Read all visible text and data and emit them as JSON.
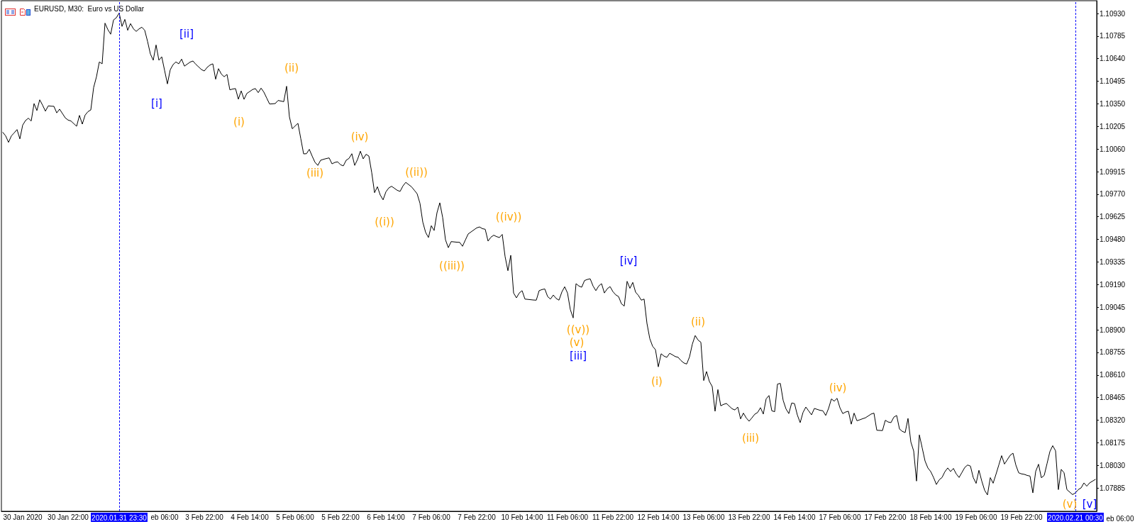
{
  "chart_data": {
    "type": "line",
    "title": "EURUSD, M30:  Euro vs US Dollar",
    "color": "#000000",
    "marker": "none",
    "line_style": "solid",
    "categories": [
      null,
      null,
      null,
      null,
      null,
      null,
      null,
      "30 Jan 2020",
      null,
      null,
      null,
      null,
      null,
      null,
      null,
      null,
      null,
      null,
      null,
      null,
      null,
      null,
      null,
      "30 Jan 22:00",
      null,
      null,
      null,
      null,
      null,
      null,
      null,
      null,
      null,
      null,
      null,
      null,
      null,
      null,
      null,
      null,
      null,
      "2020.01.31 23:30",
      null,
      null,
      null,
      null,
      null,
      null,
      null,
      null,
      null,
      null,
      null,
      null,
      null,
      null,
      null,
      "eb 06:00",
      null,
      null,
      null,
      null,
      null,
      null,
      null,
      null,
      null,
      null,
      null,
      null,
      null,
      "3 Feb 22:00",
      null,
      null,
      null,
      null,
      null,
      null,
      null,
      null,
      null,
      null,
      null,
      null,
      null,
      null,
      null,
      "4 Feb 14:00",
      null,
      null,
      null,
      null,
      null,
      null,
      null,
      null,
      null,
      null,
      null,
      null,
      null,
      null,
      null,
      "5 Feb 06:00",
      null,
      null,
      null,
      null,
      null,
      null,
      null,
      null,
      null,
      null,
      null,
      null,
      null,
      null,
      null,
      "5 Feb 22:00",
      null,
      null,
      null,
      null,
      null,
      null,
      null,
      null,
      null,
      null,
      null,
      null,
      null,
      null,
      null,
      "6 Feb 14:00",
      null,
      null,
      null,
      null,
      null,
      null,
      null,
      null,
      null,
      null,
      null,
      null,
      null,
      null,
      null,
      "7 Feb 06:00",
      null,
      null,
      null,
      null,
      null,
      null,
      null,
      null,
      null,
      null,
      null,
      null,
      null,
      null,
      null,
      "7 Feb 22:00",
      null,
      null,
      null,
      null,
      null,
      null,
      null,
      null,
      null,
      null,
      null,
      null,
      null,
      null,
      null,
      "10 Feb 14:00",
      null,
      null,
      null,
      null,
      null,
      null,
      null,
      null,
      null,
      null,
      null,
      null,
      null,
      null,
      null,
      "11 Feb 06:00",
      null,
      null,
      null,
      null,
      null,
      null,
      null,
      null,
      null,
      null,
      null,
      null,
      null,
      null,
      null,
      "11 Feb 22:00",
      null,
      null,
      null,
      null,
      null,
      null,
      null,
      null,
      null,
      null,
      null,
      null,
      null,
      null,
      null,
      "12 Feb 14:00",
      null,
      null,
      null,
      null,
      null,
      null,
      null,
      null,
      null,
      null,
      null,
      null,
      null,
      null,
      null,
      "13 Feb 06:00",
      null,
      null,
      null,
      null,
      null,
      null,
      null,
      null,
      null,
      null,
      null,
      null,
      null,
      null,
      null,
      "13 Feb 22:00",
      null,
      null,
      null,
      null,
      null,
      null,
      null,
      null,
      null,
      null,
      null,
      null,
      null,
      null,
      null,
      "14 Feb 14:00",
      null,
      null,
      null,
      null,
      null,
      null,
      null,
      null,
      null,
      null,
      null,
      null,
      null,
      null,
      null,
      "17 Feb 06:00",
      null,
      null,
      null,
      null,
      null,
      null,
      null,
      null,
      null,
      null,
      null,
      null,
      null,
      null,
      null,
      "17 Feb 22:00",
      null,
      null,
      null,
      null,
      null,
      null,
      null,
      null,
      null,
      null,
      null,
      null,
      null,
      null,
      null,
      "18 Feb 14:00",
      null,
      null,
      null,
      null,
      null,
      null,
      null,
      null,
      null,
      null,
      null,
      null,
      null,
      null,
      null,
      "19 Feb 06:00",
      null,
      null,
      null,
      null,
      null,
      null,
      null,
      null,
      null,
      null,
      null,
      null,
      null,
      null,
      null,
      "19 Feb 22:00",
      null,
      null,
      null,
      null,
      null,
      null,
      null,
      null,
      null,
      null,
      null,
      null,
      null,
      null,
      null,
      null,
      null,
      null,
      "2020.02.21 00:30",
      null,
      null,
      null,
      null,
      null,
      null,
      null
    ],
    "values": [
      1.10167,
      1.10144,
      1.10103,
      1.10144,
      1.10164,
      1.10185,
      1.10125,
      1.10214,
      1.10243,
      1.10258,
      1.1024,
      1.10352,
      1.10307,
      1.10376,
      1.10342,
      1.10303,
      1.10337,
      1.10335,
      1.10334,
      1.10292,
      1.10316,
      1.10288,
      1.1026,
      1.10246,
      1.1024,
      1.10223,
      1.10206,
      1.10276,
      1.1022,
      1.10278,
      1.103,
      1.10311,
      1.10455,
      1.10524,
      1.10619,
      1.10607,
      1.10868,
      1.10827,
      1.10797,
      1.10888,
      1.10903,
      1.10933,
      1.10847,
      1.10892,
      1.10822,
      1.10865,
      1.10832,
      1.10815,
      1.10831,
      1.10842,
      1.10822,
      1.10751,
      1.1067,
      1.1063,
      1.10728,
      1.1063,
      1.10652,
      1.10565,
      1.10478,
      1.10569,
      1.10602,
      1.10619,
      1.10607,
      1.10637,
      1.10592,
      1.10605,
      1.10618,
      1.10625,
      1.10604,
      1.10587,
      1.1057,
      1.10561,
      1.10584,
      1.10599,
      1.10607,
      1.10508,
      1.10576,
      1.10541,
      1.10524,
      1.10539,
      1.1044,
      1.10445,
      1.10448,
      1.1038,
      1.10433,
      1.10379,
      1.10417,
      1.10429,
      1.10442,
      1.10448,
      1.10422,
      1.10451,
      1.10425,
      1.10387,
      1.10349,
      1.1035,
      1.10352,
      1.10372,
      1.10368,
      1.10364,
      1.10463,
      1.10266,
      1.1019,
      1.10208,
      1.10225,
      1.10127,
      1.10029,
      1.1003,
      1.10058,
      1.10015,
      1.09975,
      1.09955,
      1.09988,
      1.09994,
      1.09999,
      1.10003,
      1.09965,
      1.09974,
      1.09978,
      1.09959,
      1.09952,
      1.09988,
      1.1,
      1.1003,
      1.09955,
      1.09993,
      1.10046,
      1.09997,
      1.10026,
      1.10015,
      1.09909,
      1.0978,
      1.09818,
      1.09765,
      1.09734,
      1.09785,
      1.0981,
      1.09821,
      1.09808,
      1.09795,
      1.09788,
      1.09823,
      1.09846,
      1.09832,
      1.09818,
      1.09796,
      1.09773,
      1.09712,
      1.09591,
      1.09525,
      1.09492,
      1.09568,
      1.09537,
      1.09651,
      1.09715,
      1.09621,
      1.09477,
      1.09427,
      1.09466,
      1.09464,
      1.09462,
      1.09461,
      1.09436,
      1.09476,
      1.09515,
      1.09528,
      1.09541,
      1.09554,
      1.0956,
      1.09549,
      1.09545,
      1.09469,
      1.09494,
      1.09507,
      1.09498,
      1.09492,
      1.09512,
      1.0937,
      1.09279,
      1.09378,
      1.09136,
      1.09105,
      1.09136,
      1.09151,
      1.09097,
      1.09095,
      1.09093,
      1.09091,
      1.0909,
      1.09151,
      1.09158,
      1.09162,
      1.09113,
      1.09097,
      1.09123,
      1.09101,
      1.0909,
      1.09142,
      1.09176,
      1.09136,
      1.09029,
      1.08976,
      1.09196,
      1.09181,
      1.09173,
      1.09216,
      1.09223,
      1.09227,
      1.09181,
      1.09151,
      1.09181,
      1.09196,
      1.09136,
      1.09163,
      1.09177,
      1.09145,
      1.09124,
      1.09113,
      1.09067,
      1.09052,
      1.09211,
      1.09166,
      1.09204,
      1.09141,
      1.0912,
      1.0909,
      1.09097,
      1.08941,
      1.08843,
      1.08794,
      1.08772,
      1.08662,
      1.08746,
      1.08731,
      1.08723,
      1.08749,
      1.08739,
      1.08728,
      1.08723,
      1.08702,
      1.08687,
      1.0868,
      1.08726,
      1.08808,
      1.08863,
      1.08834,
      1.0882,
      1.08574,
      1.08632,
      1.08568,
      1.08536,
      1.08377,
      1.08516,
      1.08412,
      1.08421,
      1.08427,
      1.0841,
      1.08393,
      1.08385,
      1.08404,
      1.08328,
      1.08365,
      1.08334,
      1.08313,
      1.08335,
      1.08358,
      1.08369,
      1.084,
      1.08359,
      1.08456,
      1.08478,
      1.0838,
      1.08374,
      1.08551,
      1.08556,
      1.08447,
      1.08392,
      1.08362,
      1.0843,
      1.08426,
      1.08353,
      1.08304,
      1.08369,
      1.08404,
      1.08379,
      1.08354,
      1.08395,
      1.08389,
      1.08383,
      1.0838,
      1.0835,
      1.08395,
      1.08456,
      1.08442,
      1.0846,
      1.084,
      1.08362,
      1.08372,
      1.08377,
      1.08294,
      1.08365,
      1.08316,
      1.08322,
      1.08329,
      1.08335,
      1.08347,
      1.08359,
      1.08365,
      1.08255,
      1.08254,
      1.08253,
      1.08319,
      1.08308,
      1.08304,
      1.08339,
      1.0835,
      1.08263,
      1.08248,
      1.0824,
      1.08331,
      1.0818,
      1.08122,
      1.07929,
      1.08225,
      1.08142,
      1.08058,
      1.08013,
      1.0799,
      1.07952,
      1.07907,
      1.07937,
      1.07952,
      1.07989,
      1.08013,
      1.0799,
      1.0801,
      1.07975,
      1.07952,
      1.07984,
      1.08016,
      1.08032,
      1.08025,
      1.07951,
      1.07914,
      1.07998,
      1.07929,
      1.0787,
      1.0784,
      1.07951,
      1.07915,
      1.07972,
      1.08032,
      1.08092,
      1.08038,
      1.08066,
      1.08094,
      1.08108,
      1.08032,
      1.07982,
      1.07975,
      1.07972,
      1.07965,
      1.07961,
      1.07853,
      1.07991,
      1.08037,
      1.0795,
      1.07965,
      1.08041,
      1.08118,
      1.08156,
      1.08123,
      1.07874,
      1.08004,
      1.07982,
      1.07874,
      1.07858,
      1.07842,
      1.07853,
      1.07874,
      1.07885,
      1.07917,
      1.07896,
      1.07917,
      1.07928,
      1.07939
    ],
    "ylim": [
      1.07735,
      1.11012
    ],
    "yticks": [
      {
        "value": 1.1093,
        "label": "1.10930"
      },
      {
        "value": 1.10785,
        "label": "1.10785"
      },
      {
        "value": 1.1064,
        "label": "1.10640"
      },
      {
        "value": 1.10495,
        "label": "1.10495"
      },
      {
        "value": 1.1035,
        "label": "1.10350"
      },
      {
        "value": 1.10205,
        "label": "1.10205"
      },
      {
        "value": 1.1006,
        "label": "1.10060"
      },
      {
        "value": 1.09915,
        "label": "1.09915"
      },
      {
        "value": 1.0977,
        "label": "1.09770"
      },
      {
        "value": 1.09625,
        "label": "1.09625"
      },
      {
        "value": 1.0948,
        "label": "1.09480"
      },
      {
        "value": 1.09335,
        "label": "1.09335"
      },
      {
        "value": 1.0919,
        "label": "1.09190"
      },
      {
        "value": 1.09045,
        "label": "1.09045"
      },
      {
        "value": 1.089,
        "label": "1.08900"
      },
      {
        "value": 1.08755,
        "label": "1.08755"
      },
      {
        "value": 1.0861,
        "label": "1.08610"
      },
      {
        "value": 1.08465,
        "label": "1.08465"
      },
      {
        "value": 1.0832,
        "label": "1.08320"
      },
      {
        "value": 1.08175,
        "label": "1.08175"
      },
      {
        "value": 1.0803,
        "label": "1.08030"
      },
      {
        "value": 1.07885,
        "label": "1.07885"
      }
    ],
    "annotations": [
      "(i)",
      "(ii)",
      "(iii)",
      "(iv)",
      "((i))",
      "((ii))",
      "((iii))",
      "((iv))",
      "((v))",
      "(v)",
      "(i)",
      "(ii)",
      "(iii)",
      "(iv)",
      "(v)",
      "[i]",
      "[ii]",
      "[iii]",
      "[iv]",
      "[v]",
      "eb 06:00"
    ]
  }
}
